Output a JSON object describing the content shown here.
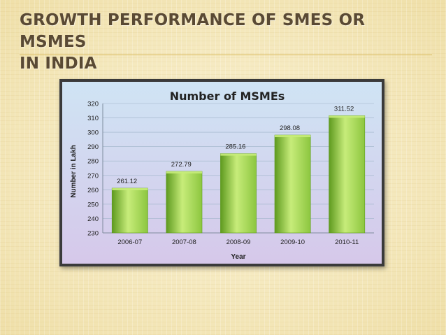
{
  "slide": {
    "title_line1": "GROWTH PERFORMANCE OF SMES OR MSMES",
    "title_line2": "IN INDIA"
  },
  "colors": {
    "bar": "#8cc63f",
    "bar_light": "#c7ec7a",
    "bar_dark": "#5e9a1f",
    "plot_bg_top": "#cfe4f4",
    "plot_bg_bottom": "#d6c8ea",
    "title_text": "#5a4a34"
  },
  "chart_data": {
    "type": "bar",
    "title": "Number of MSMEs",
    "xlabel": "Year",
    "ylabel": "Number in Lakh",
    "categories": [
      "2006-07",
      "2007-08",
      "2008-09",
      "2009-10",
      "2010-11"
    ],
    "values": [
      261.12,
      272.79,
      285.16,
      298.08,
      311.52
    ],
    "value_labels": [
      "261.12",
      "272.79",
      "285.16",
      "298.08",
      "311.52"
    ],
    "ylim": [
      230,
      320
    ],
    "yticks": [
      230,
      240,
      250,
      260,
      270,
      280,
      290,
      300,
      310,
      320
    ],
    "grid": true,
    "legend": "none"
  }
}
